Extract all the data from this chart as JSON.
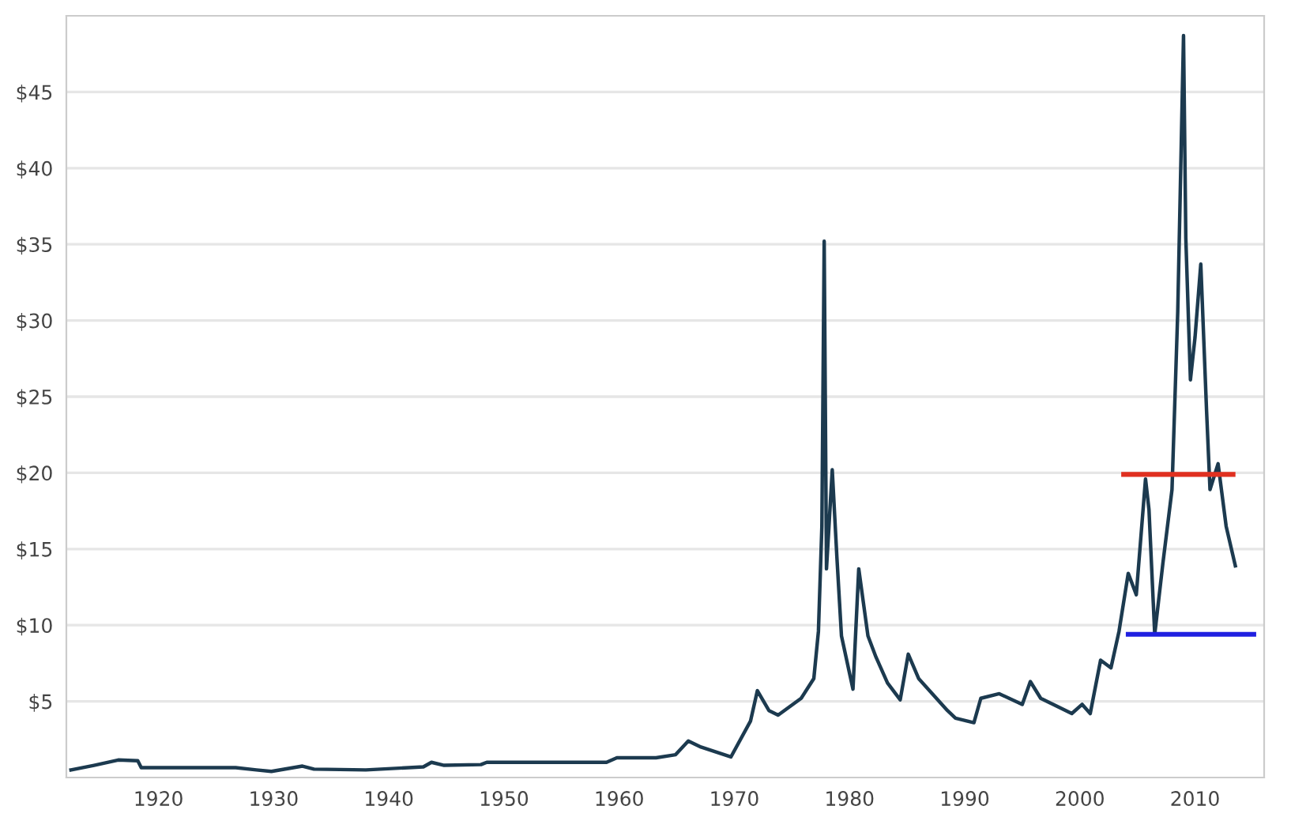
{
  "chart_data": {
    "type": "line",
    "xlim": [
      1912,
      2016
    ],
    "ylim": [
      0,
      50
    ],
    "xticks": [
      1920,
      1930,
      1940,
      1950,
      1960,
      1970,
      1980,
      1990,
      2000,
      2010
    ],
    "yticks": [
      {
        "value": 5,
        "label": "$5"
      },
      {
        "value": 10,
        "label": "$10"
      },
      {
        "value": 15,
        "label": "$15"
      },
      {
        "value": 20,
        "label": "$20"
      },
      {
        "value": 25,
        "label": "$25"
      },
      {
        "value": 30,
        "label": "$30"
      },
      {
        "value": 35,
        "label": "$35"
      },
      {
        "value": 40,
        "label": "$40"
      },
      {
        "value": 45,
        "label": "$45"
      }
    ],
    "grid": "y",
    "line_style": "solid",
    "series": [
      {
        "color": "#1c3a4f",
        "x": [
          1912.4,
          1914.4,
          1916.5,
          1918.2,
          1918.5,
          1926.7,
          1928.5,
          1929.8,
          1932.5,
          1933.5,
          1938,
          1943,
          1943.7,
          1944.8,
          1948,
          1948.5,
          1958.9,
          1959.8,
          1963.2,
          1964.9,
          1966,
          1967.1,
          1969.7,
          1971.4,
          1972,
          1973,
          1973.8,
          1975.8,
          1976.9,
          1977.3,
          1977.6,
          1977.8,
          1978,
          1978.5,
          1978.9,
          1979.3,
          1980.3,
          1980.8,
          1981.6,
          1982.3,
          1983.3,
          1984.4,
          1985.1,
          1986,
          1988.5,
          1989.2,
          1990.8,
          1991.4,
          1993,
          1995,
          1995.7,
          1996.6,
          1999.3,
          2000.2,
          2000.9,
          2001.8,
          2002.7,
          2003.4,
          2004.2,
          2004.9,
          2005.7,
          2006,
          2006.5,
          2007.2,
          2008,
          2008.5,
          2009,
          2009.2,
          2009.6,
          2010,
          2010.5,
          2011,
          2011.3,
          2012,
          2012.7,
          2013.5
        ],
        "values": [
          0.5,
          0.8,
          1.15,
          1.1,
          0.65,
          0.65,
          0.5,
          0.4,
          0.75,
          0.55,
          0.5,
          0.7,
          1.0,
          0.8,
          0.85,
          1.0,
          1.0,
          1.3,
          1.3,
          1.5,
          2.4,
          2.0,
          1.35,
          3.7,
          5.7,
          4.4,
          4.1,
          5.2,
          6.5,
          9.6,
          16.5,
          35.2,
          13.7,
          20.2,
          14.5,
          9.3,
          5.8,
          13.7,
          9.3,
          7.9,
          6.2,
          5.1,
          8.1,
          6.5,
          4.4,
          3.9,
          3.6,
          5.2,
          5.5,
          4.8,
          6.3,
          5.2,
          4.2,
          4.8,
          4.2,
          7.7,
          7.2,
          9.6,
          13.4,
          12.0,
          19.6,
          17.6,
          9.4,
          14.0,
          18.9,
          30.6,
          48.7,
          35.4,
          26.1,
          28.9,
          33.7,
          24.1,
          18.9,
          20.6,
          16.5,
          13.9
        ]
      },
      {
        "color": "#e03020",
        "x": [
          2003.8,
          2013.3
        ],
        "values": [
          19.9,
          19.9
        ]
      },
      {
        "color": "#2020e0",
        "x": [
          2004.2,
          2015.1
        ],
        "values": [
          9.4,
          9.4
        ]
      }
    ]
  }
}
